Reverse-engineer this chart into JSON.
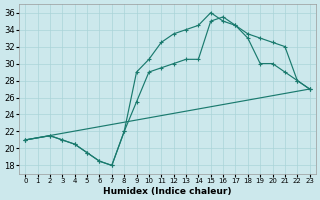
{
  "xlabel": "Humidex (Indice chaleur)",
  "xlim": [
    -0.5,
    23.5
  ],
  "ylim": [
    17,
    37
  ],
  "xticks": [
    0,
    1,
    2,
    3,
    4,
    5,
    6,
    7,
    8,
    9,
    10,
    11,
    12,
    13,
    14,
    15,
    16,
    17,
    18,
    19,
    20,
    21,
    22,
    23
  ],
  "yticks": [
    18,
    20,
    22,
    24,
    26,
    28,
    30,
    32,
    34,
    36
  ],
  "bg_color": "#cce8ec",
  "grid_color": "#aad4d8",
  "line_color": "#1a7a6e",
  "line_straight": {
    "x": [
      0,
      23
    ],
    "y": [
      21,
      27
    ]
  },
  "line_middle": {
    "x": [
      0,
      2,
      3,
      4,
      5,
      6,
      7,
      8,
      9,
      10,
      11,
      12,
      13,
      14,
      15,
      16,
      17,
      18,
      19,
      20,
      21,
      22,
      23
    ],
    "y": [
      21,
      21.5,
      21.0,
      20.5,
      19.5,
      18.5,
      18.0,
      22.0,
      25.5,
      29.0,
      29.5,
      30.0,
      30.5,
      30.5,
      35.0,
      35.5,
      34.5,
      33.5,
      33.0,
      32.5,
      32.0,
      28.0,
      27.0
    ]
  },
  "line_top": {
    "x": [
      0,
      2,
      3,
      4,
      5,
      6,
      7,
      8,
      9,
      10,
      11,
      12,
      13,
      14,
      15,
      16,
      17,
      18,
      19,
      20,
      21,
      22,
      23
    ],
    "y": [
      21,
      21.5,
      21.0,
      20.5,
      19.5,
      18.5,
      18.0,
      22.0,
      29.0,
      30.5,
      32.5,
      33.5,
      34.0,
      34.5,
      36.0,
      35.0,
      34.5,
      33.0,
      30.0,
      30.0,
      29.0,
      28.0,
      27.0
    ]
  }
}
